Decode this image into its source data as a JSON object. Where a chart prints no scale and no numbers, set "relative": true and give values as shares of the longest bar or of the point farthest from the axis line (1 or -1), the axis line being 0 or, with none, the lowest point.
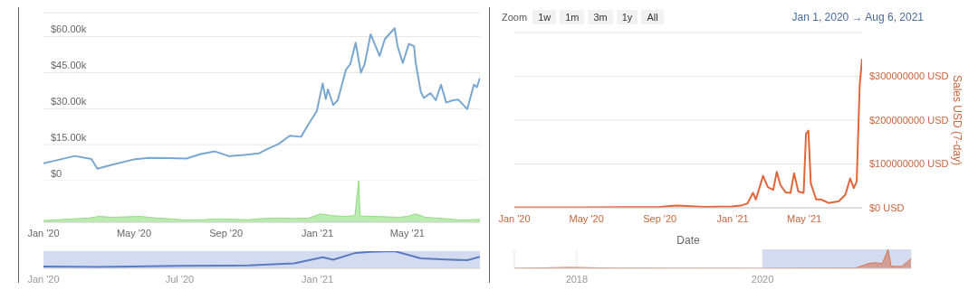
{
  "chart_data": [
    {
      "type": "line",
      "x": [
        "2020-01-01",
        "2020-01-20",
        "2020-02-12",
        "2020-03-05",
        "2020-03-13",
        "2020-04-01",
        "2020-04-30",
        "2020-05-20",
        "2020-06-15",
        "2020-07-10",
        "2020-07-28",
        "2020-08-17",
        "2020-09-05",
        "2020-09-25",
        "2020-10-15",
        "2020-10-25",
        "2020-11-10",
        "2020-11-25",
        "2020-12-10",
        "2020-12-20",
        "2020-12-31",
        "2021-01-08",
        "2021-01-12",
        "2021-01-15",
        "2021-01-22",
        "2021-01-28",
        "2021-02-08",
        "2021-02-14",
        "2021-02-21",
        "2021-02-28",
        "2021-03-05",
        "2021-03-13",
        "2021-03-25",
        "2021-04-01",
        "2021-04-14",
        "2021-04-18",
        "2021-04-25",
        "2021-05-03",
        "2021-05-10",
        "2021-05-12",
        "2021-05-19",
        "2021-05-23",
        "2021-06-01",
        "2021-06-08",
        "2021-06-15",
        "2021-06-22",
        "2021-07-01",
        "2021-07-08",
        "2021-07-20",
        "2021-07-29",
        "2021-08-02",
        "2021-08-06"
      ],
      "series": [
        {
          "color": "#7aa7d0",
          "values": [
            7200,
            8600,
            10300,
            9000,
            5000,
            6600,
            8800,
            9500,
            9400,
            9200,
            11000,
            12200,
            10200,
            10700,
            11400,
            13000,
            15300,
            18700,
            18300,
            23500,
            29000,
            40500,
            34000,
            38000,
            31500,
            33500,
            46200,
            48700,
            57500,
            45000,
            48500,
            61000,
            52000,
            59000,
            63500,
            56000,
            49000,
            57000,
            56000,
            49500,
            37000,
            34500,
            36500,
            33500,
            40000,
            32500,
            33500,
            33800,
            29800,
            40000,
            39000,
            42800
          ]
        }
      ],
      "xlim": [
        "2020-01-01",
        "2021-08-06"
      ],
      "ylim": [
        0,
        70000
      ],
      "yticks": [
        {
          "value": 0,
          "label": "$0"
        },
        {
          "value": 15000,
          "label": "$15.00k"
        },
        {
          "value": 30000,
          "label": "$30.00k"
        },
        {
          "value": 45000,
          "label": "$45.00k"
        },
        {
          "value": 60000,
          "label": "$60.00k"
        }
      ],
      "tick_labels": "y",
      "grid": "y"
    },
    {
      "type": "area",
      "relative": true,
      "x": [
        "2020-01-01",
        "2020-01-20",
        "2020-02-10",
        "2020-03-01",
        "2020-03-15",
        "2020-04-01",
        "2020-04-20",
        "2020-05-10",
        "2020-06-01",
        "2020-06-20",
        "2020-07-10",
        "2020-08-01",
        "2020-08-20",
        "2020-09-10",
        "2020-10-01",
        "2020-10-20",
        "2020-11-10",
        "2020-12-01",
        "2020-12-20",
        "2021-01-05",
        "2021-01-20",
        "2021-02-05",
        "2021-02-20",
        "2021-02-25",
        "2021-02-27",
        "2021-03-15",
        "2021-04-05",
        "2021-04-20",
        "2021-05-01",
        "2021-05-12",
        "2021-05-25",
        "2021-06-10",
        "2021-06-25",
        "2021-07-10",
        "2021-07-25",
        "2021-08-06"
      ],
      "series": [
        {
          "color": "#8fde7f",
          "values": [
            0.04,
            0.06,
            0.08,
            0.1,
            0.14,
            0.12,
            0.13,
            0.14,
            0.1,
            0.08,
            0.05,
            0.06,
            0.08,
            0.07,
            0.06,
            0.09,
            0.1,
            0.09,
            0.1,
            0.2,
            0.16,
            0.14,
            0.16,
            1,
            0.15,
            0.14,
            0.13,
            0.12,
            0.14,
            0.2,
            0.12,
            0.1,
            0.08,
            0.05,
            0.06,
            0.07
          ]
        }
      ],
      "xlim": [
        "2020-01-01",
        "2021-08-06"
      ],
      "xticks": [
        {
          "value": "2020-01-01",
          "label": "Jan '20"
        },
        {
          "value": "2020-05-01",
          "label": "May '20"
        },
        {
          "value": "2020-09-01",
          "label": "Sep '20"
        },
        {
          "value": "2021-01-01",
          "label": "Jan '21"
        },
        {
          "value": "2021-05-01",
          "label": "May '21"
        }
      ],
      "tick_labels": "x"
    },
    {
      "type": "line",
      "relative": true,
      "x": [
        "2020-01-01",
        "2020-03-13",
        "2020-07-01",
        "2020-10-01",
        "2020-12-01",
        "2021-01-08",
        "2021-01-22",
        "2021-02-21",
        "2021-03-13",
        "2021-04-14",
        "2021-05-19",
        "2021-06-22",
        "2021-07-20",
        "2021-08-06"
      ],
      "series": [
        {
          "color": "#5b7bc0",
          "values": [
            0.11,
            0.08,
            0.14,
            0.17,
            0.29,
            0.64,
            0.5,
            0.9,
            0.96,
            1,
            0.58,
            0.51,
            0.47,
            0.67
          ]
        }
      ],
      "xlim": [
        "2020-01-01",
        "2021-08-06"
      ],
      "xticks": [
        {
          "value": "2020-01-01",
          "label": "Jan '20"
        },
        {
          "value": "2020-07-01",
          "label": "Jul '20"
        },
        {
          "value": "2021-01-01",
          "label": "Jan '21"
        }
      ],
      "bands": [
        {
          "axis": "x",
          "from": "2020-01-01",
          "to": "2021-08-06",
          "color": "#d3dbf0"
        }
      ],
      "tick_labels": "x"
    },
    {
      "type": "line",
      "x": [
        "2020-01-01",
        "2020-05-01",
        "2020-09-01",
        "2020-09-29",
        "2020-11-15",
        "2020-12-31",
        "2021-01-15",
        "2021-01-26",
        "2021-02-04",
        "2021-02-09",
        "2021-02-21",
        "2021-03-01",
        "2021-03-10",
        "2021-03-16",
        "2021-03-22",
        "2021-03-31",
        "2021-04-08",
        "2021-04-14",
        "2021-04-21",
        "2021-04-30",
        "2021-05-04",
        "2021-05-08",
        "2021-05-12",
        "2021-05-21",
        "2021-05-29",
        "2021-06-11",
        "2021-06-28",
        "2021-07-09",
        "2021-07-17",
        "2021-07-23",
        "2021-07-28",
        "2021-08-02",
        "2021-08-06"
      ],
      "series": [
        {
          "color": "#e0663a",
          "values": [
            1000000,
            1000000,
            2000000,
            5000000,
            2000000,
            3000000,
            5000000,
            10000000,
            34000000,
            19000000,
            73000000,
            47000000,
            41000000,
            82000000,
            52000000,
            35000000,
            34000000,
            79000000,
            37000000,
            34000000,
            169000000,
            176000000,
            56000000,
            19000000,
            19000000,
            11000000,
            15000000,
            30000000,
            67000000,
            45000000,
            60000000,
            280000000,
            340000000
          ]
        }
      ],
      "xlim": [
        "2020-01-01",
        "2021-08-06"
      ],
      "ylim": [
        0,
        400000000
      ],
      "xticks": [
        {
          "value": "2020-01-01",
          "label": "Jan '20"
        },
        {
          "value": "2020-05-01",
          "label": "May '20"
        },
        {
          "value": "2020-09-01",
          "label": "Sep '20"
        },
        {
          "value": "2021-01-01",
          "label": "Jan '21"
        },
        {
          "value": "2021-05-01",
          "label": "May '21"
        }
      ],
      "yticks": [
        {
          "value": 0,
          "label": "$0 USD"
        },
        {
          "value": 100000000,
          "label": "$100000000 USD"
        },
        {
          "value": 200000000,
          "label": "$200000000 USD"
        },
        {
          "value": 300000000,
          "label": "$300000000 USD"
        },
        {
          "value": 400000000,
          "label": null
        }
      ],
      "xlabel": "Date",
      "ylabel": "Sales USD (7-day)",
      "grid": "y",
      "annotations": [
        "Zoom",
        "1w",
        "1m",
        "3m",
        "1y",
        "All",
        "Jan 1, 2020 → Aug 6, 2021"
      ]
    },
    {
      "type": "area",
      "relative": true,
      "x": [
        "2017-05-01",
        "2017-12-10",
        "2018-06-01",
        "2020-01-01",
        "2021-01-01",
        "2021-02-20",
        "2021-03-15",
        "2021-04-15",
        "2021-05-08",
        "2021-05-20",
        "2021-07-01",
        "2021-08-06"
      ],
      "series": [
        {
          "color": "#d0765a",
          "values": [
            0,
            0.05,
            0.01,
            0,
            0.02,
            0.25,
            0.3,
            0.25,
            1,
            0.1,
            0.1,
            0.5
          ]
        }
      ],
      "xlim": [
        "2017-05-01",
        "2021-08-06"
      ],
      "xticks": [
        {
          "value": "2018-01-01",
          "label": "2018"
        },
        {
          "value": "2020-01-01",
          "label": "2020"
        }
      ],
      "bands": [
        {
          "axis": "x",
          "from": "2020-01-01",
          "to": "2021-08-06",
          "color": "#d3dbf0"
        }
      ],
      "tick_labels": "x",
      "grid": "x"
    }
  ]
}
